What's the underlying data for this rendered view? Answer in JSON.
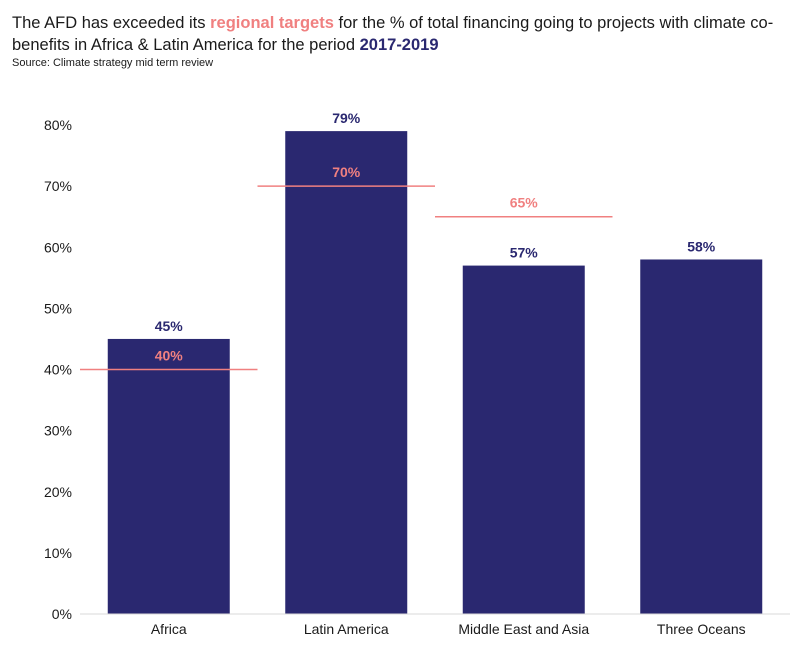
{
  "header": {
    "title_parts": [
      {
        "text": "The AFD has exceeded its ",
        "style": "normal"
      },
      {
        "text": "regional targets",
        "style": "pink"
      },
      {
        "text": " for the % of total financing going to projects with climate co-benefits in Africa & Latin America for the period ",
        "style": "normal"
      },
      {
        "text": "2017-2019",
        "style": "navy"
      }
    ],
    "source": "Source: Climate strategy mid term review"
  },
  "colors": {
    "bar": "#2a2870",
    "target": "#f08080",
    "axis": "#d9d9d9"
  },
  "chart_data": {
    "type": "bar",
    "categories": [
      "Africa",
      "Latin America",
      "Middle East and Asia",
      "Three Oceans"
    ],
    "values": [
      45,
      79,
      57,
      58
    ],
    "value_labels": [
      "45%",
      "79%",
      "57%",
      "58%"
    ],
    "targets": [
      {
        "category": "Africa",
        "value": 40,
        "label": "40%"
      },
      {
        "category": "Latin America",
        "value": 70,
        "label": "70%"
      },
      {
        "category": "Middle East and Asia",
        "value": 65,
        "label": "65%"
      }
    ],
    "ylim": [
      0,
      80
    ],
    "yticks": [
      0,
      10,
      20,
      30,
      40,
      50,
      60,
      70,
      80
    ],
    "ytick_labels": [
      "0%",
      "10%",
      "20%",
      "30%",
      "40%",
      "50%",
      "60%",
      "70%",
      "80%"
    ],
    "grid": false,
    "legend": "none"
  }
}
